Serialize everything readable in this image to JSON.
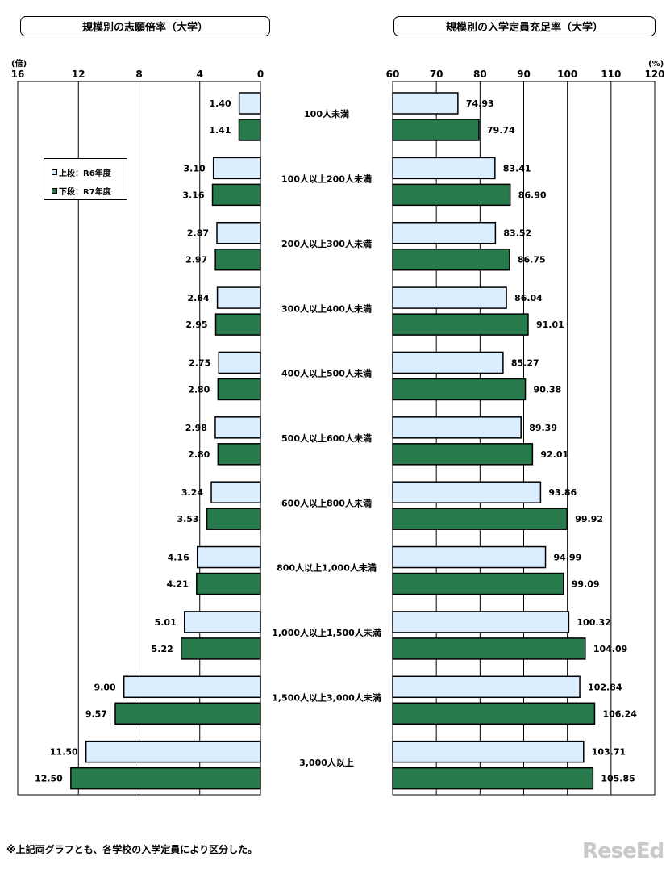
{
  "colors": {
    "r6_fill": "#dbeeff",
    "r7_fill": "#267a4c",
    "edge": "#000000",
    "grid": "#000000"
  },
  "legend": {
    "r6_label": "上段：R6年度",
    "r7_label": "下段：R7年度"
  },
  "footnote": "※上記両グラフとも、各学校の入学定員により区分した。",
  "logo_text": "ReseEd",
  "categories": [
    "100人未満",
    "100人以上200人未満",
    "200人以上300人未満",
    "300人以上400人未満",
    "400人以上500人未満",
    "500人以上600人未満",
    "600人以上800人未満",
    "800人以上1,000人未満",
    "1,000人以上1,500人未満",
    "1,500人以上3,000人未満",
    "3,000人以上"
  ],
  "chart_data": [
    {
      "type": "bar",
      "orientation": "horizontal",
      "x_direction": "reversed",
      "title": "規模別の志願倍率（大学）",
      "unit": "(倍)",
      "xlim": [
        0,
        16
      ],
      "ticks": [
        16,
        12,
        8,
        4,
        0
      ],
      "grid": true,
      "series": [
        {
          "name": "R6年度",
          "values": [
            1.4,
            3.1,
            2.87,
            2.84,
            2.75,
            2.98,
            3.24,
            4.16,
            5.01,
            9.0,
            11.5
          ]
        },
        {
          "name": "R7年度",
          "values": [
            1.41,
            3.16,
            2.97,
            2.95,
            2.8,
            2.8,
            3.53,
            4.21,
            5.22,
            9.57,
            12.5
          ]
        }
      ]
    },
    {
      "type": "bar",
      "orientation": "horizontal",
      "title": "規模別の入学定員充足率（大学）",
      "unit": "(%)",
      "xlim": [
        60,
        120
      ],
      "ticks": [
        60,
        70,
        80,
        90,
        100,
        110,
        120
      ],
      "grid": true,
      "series": [
        {
          "name": "R6年度",
          "values": [
            74.93,
            83.41,
            83.52,
            86.04,
            85.27,
            89.39,
            93.86,
            94.99,
            100.32,
            102.84,
            103.71
          ]
        },
        {
          "name": "R7年度",
          "values": [
            79.74,
            86.9,
            86.75,
            91.01,
            90.38,
            92.01,
            99.92,
            99.09,
            104.09,
            106.24,
            105.85
          ]
        }
      ]
    }
  ]
}
